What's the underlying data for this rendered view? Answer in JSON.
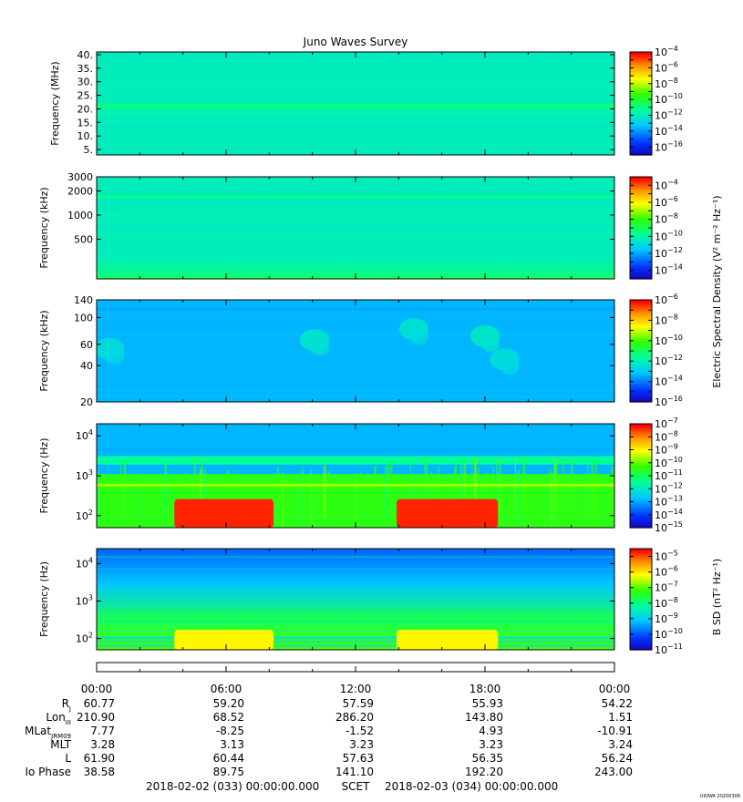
{
  "figure": {
    "title": "Juno Waves Survey",
    "stamp": "UIOWA 20200306",
    "x_axis_tick_labels": [
      "00:00",
      "06:00",
      "12:00",
      "18:00",
      "00:00"
    ],
    "time_range": {
      "start": "2018-02-02 (033) 00:00:00.000",
      "middle_label": "SCET",
      "end": "2018-02-03 (034) 00:00:00.000"
    }
  },
  "colorbar_labels": {
    "electric": "Electric Spectral Density (V² m⁻² Hz⁻¹)",
    "magnetic": "B SD (nT² Hz⁻¹)"
  },
  "chart_data": [
    {
      "type": "heatmap",
      "panel": "hfwbr-high",
      "ylabel": "Frequency (MHz)",
      "yscale": "linear",
      "ylim": [
        3,
        41
      ],
      "yticks": [
        {
          "value": 40,
          "label": "40."
        },
        {
          "value": 35,
          "label": "35."
        },
        {
          "value": 30,
          "label": "30."
        },
        {
          "value": 25,
          "label": "25."
        },
        {
          "value": 20,
          "label": "20."
        },
        {
          "value": 15,
          "label": "15."
        },
        {
          "value": 10,
          "label": "10."
        },
        {
          "value": 5,
          "label": "5."
        }
      ],
      "colorbar": {
        "min_exp": -17,
        "max_exp": -4,
        "tick_exponents": [
          -4,
          -6,
          -8,
          -10,
          -12,
          -14,
          -16
        ]
      },
      "features": [
        {
          "kind": "background",
          "level": 0.4
        },
        {
          "kind": "band",
          "y_center": 21,
          "y_width": 2,
          "level": 0.47
        }
      ]
    },
    {
      "type": "heatmap",
      "panel": "hfwbr-low",
      "ylabel": "Frequency (kHz)",
      "yscale": "log",
      "ylim": [
        160,
        3000
      ],
      "yticks": [
        {
          "value": 3000,
          "label": "3000"
        },
        {
          "value": 2000,
          "label": "2000"
        },
        {
          "value": 1000,
          "label": "1000"
        },
        {
          "value": 500,
          "label": "500"
        }
      ],
      "colorbar": {
        "min_exp": -15,
        "max_exp": -3,
        "tick_exponents": [
          -4,
          -6,
          -8,
          -10,
          -12,
          -14
        ]
      },
      "features": [
        {
          "kind": "background",
          "level": 0.4
        },
        {
          "kind": "band",
          "y_center": 1700,
          "y_width": 150,
          "level": 0.46
        },
        {
          "kind": "bottom-glow",
          "level": 0.5
        }
      ]
    },
    {
      "type": "heatmap",
      "panel": "lfr-high",
      "ylabel": "Frequency (kHz)",
      "yscale": "log",
      "ylim": [
        20,
        140
      ],
      "yticks": [
        {
          "value": 140,
          "label": "140"
        },
        {
          "value": 100,
          "label": "100"
        },
        {
          "value": 60,
          "label": "60"
        },
        {
          "value": 40,
          "label": "40"
        },
        {
          "value": 20,
          "label": "20"
        }
      ],
      "colorbar": {
        "min_exp": -16,
        "max_exp": -6,
        "tick_exponents": [
          -6,
          -8,
          -10,
          -12,
          -14,
          -16
        ]
      },
      "features": [
        {
          "kind": "background",
          "level": 0.28
        },
        {
          "kind": "blob",
          "t_hours": 0.6,
          "freq": 55,
          "level": 0.36
        },
        {
          "kind": "blob",
          "t_hours": 10.1,
          "freq": 65,
          "level": 0.38
        },
        {
          "kind": "blob",
          "t_hours": 14.7,
          "freq": 80,
          "level": 0.37
        },
        {
          "kind": "blob",
          "t_hours": 18.0,
          "freq": 70,
          "level": 0.39
        },
        {
          "kind": "blob",
          "t_hours": 18.9,
          "freq": 45,
          "level": 0.36
        }
      ]
    },
    {
      "type": "heatmap",
      "panel": "electric-low",
      "ylabel": "Frequency (Hz)",
      "yscale": "log",
      "ylim": [
        50,
        20000
      ],
      "yticks": [
        {
          "value": 10000,
          "base": "10",
          "exp": "4"
        },
        {
          "value": 1000,
          "base": "10",
          "exp": "3"
        },
        {
          "value": 100,
          "base": "10",
          "exp": "2"
        }
      ],
      "colorbar": {
        "min_exp": -15,
        "max_exp": -7,
        "tick_exponents": [
          -7,
          -8,
          -9,
          -10,
          -11,
          -12,
          -13,
          -14,
          -15
        ]
      },
      "features": [
        {
          "kind": "background-high",
          "level": 0.28
        },
        {
          "kind": "band",
          "y_center": 2500,
          "y_width": 1200,
          "level": 0.45
        },
        {
          "kind": "band",
          "y_center": 600,
          "y_width": 60,
          "level": 0.68
        },
        {
          "kind": "low-freq",
          "level": 0.58
        },
        {
          "kind": "burst",
          "t_start": 3.6,
          "t_end": 8.2,
          "f_top": 260,
          "level": 0.97
        },
        {
          "kind": "burst",
          "t_start": 13.9,
          "t_end": 18.6,
          "f_top": 260,
          "level": 0.97
        }
      ]
    },
    {
      "type": "heatmap",
      "panel": "magnetic",
      "ylabel": "Frequency (Hz)",
      "yscale": "log",
      "ylim": [
        50,
        25000
      ],
      "yticks": [
        {
          "value": 10000,
          "base": "10",
          "exp": "4"
        },
        {
          "value": 1000,
          "base": "10",
          "exp": "3"
        },
        {
          "value": 100,
          "base": "10",
          "exp": "2"
        }
      ],
      "colorbar": {
        "min_exp": -11,
        "max_exp": -4.5,
        "tick_exponents": [
          -5,
          -6,
          -7,
          -8,
          -9,
          -10,
          -11
        ]
      },
      "features": [
        {
          "kind": "vertical-gradient",
          "top_level": 0.18,
          "bottom_level": 0.62
        },
        {
          "kind": "burst",
          "t_start": 3.6,
          "t_end": 8.2,
          "f_top": 170,
          "level": 0.76
        },
        {
          "kind": "burst",
          "t_start": 13.9,
          "t_end": 18.6,
          "f_top": 170,
          "level": 0.76
        }
      ]
    }
  ],
  "ephemeris": {
    "rows": [
      {
        "name": "R",
        "sub": "J",
        "values": [
          "60.77",
          "59.20",
          "57.59",
          "55.93",
          "54.22"
        ]
      },
      {
        "name": "Lon",
        "sub": "III",
        "values": [
          "210.90",
          "68.52",
          "286.20",
          "143.80",
          "1.51"
        ]
      },
      {
        "name": "MLat",
        "sub": "JRM09",
        "values": [
          "7.77",
          "-8.25",
          "-1.52",
          "4.93",
          "-10.91"
        ]
      },
      {
        "name": "MLT",
        "sub": "",
        "values": [
          "3.28",
          "3.13",
          "3.23",
          "3.23",
          "3.24"
        ]
      },
      {
        "name": "L",
        "sub": "",
        "values": [
          "61.90",
          "60.44",
          "57.63",
          "56.35",
          "56.24"
        ]
      },
      {
        "name": "Io Phase",
        "sub": "",
        "values": [
          "38.58",
          "89.75",
          "141.10",
          "192.20",
          "243.00"
        ]
      }
    ]
  }
}
